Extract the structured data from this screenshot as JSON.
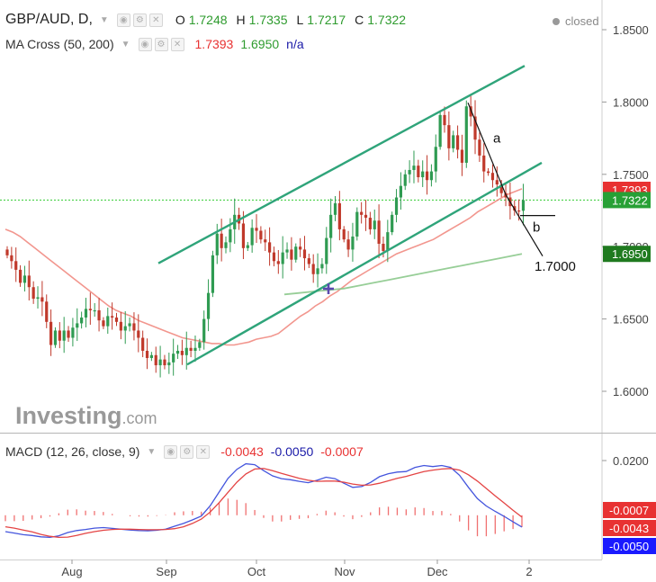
{
  "header": {
    "symbol": "GBP/AUD, D,",
    "status": "closed",
    "ohlc": [
      {
        "key": "O",
        "value": "1.7248"
      },
      {
        "key": "H",
        "value": "1.7335"
      },
      {
        "key": "L",
        "value": "1.7217"
      },
      {
        "key": "C",
        "value": "1.7322"
      }
    ]
  },
  "ma_legend": {
    "label": "MA Cross (50, 200)",
    "v1": "1.7393",
    "v2": "1.6950",
    "v3": "n/a"
  },
  "macd_legend": {
    "label": "MACD (12, 26, close, 9)",
    "v1": "-0.0043",
    "v2": "-0.0050",
    "v3": "-0.0007"
  },
  "watermark": {
    "brand": "Investing",
    "suffix": ".com"
  },
  "colors": {
    "up": "#2f9b52",
    "down": "#c0392b",
    "channel": "#2fa47a",
    "ma50": "#f0847a",
    "ma200": "#8cc98c",
    "macd": "#4455dd",
    "signal": "#e44444",
    "hist": "#f07070",
    "last_line": "#33cc33"
  },
  "chart_data": [
    {
      "type": "candlestick",
      "title": "GBP/AUD, D,",
      "x_ticks": [
        "Aug",
        "Sep",
        "Oct",
        "Nov",
        "Dec",
        "2"
      ],
      "y_ticks": [
        "1.8500",
        "1.8000",
        "1.7500",
        "1.7000",
        "1.6500",
        "1.6000"
      ],
      "ylim": [
        1.565,
        1.862
      ],
      "grid": false,
      "price_tags": [
        {
          "label": "1.7393",
          "value": 1.7393,
          "color": "#e83232"
        },
        {
          "label": "1.7322",
          "value": 1.7322,
          "color": "#27a035"
        },
        {
          "label": "1.6950",
          "value": 1.695,
          "color": "#1f7a1f"
        }
      ],
      "annotations": [
        {
          "text": "a",
          "x": 55,
          "y": 1.775
        },
        {
          "text": "b",
          "x": 62,
          "y": 1.7135
        },
        {
          "text": "1.7000",
          "x": 64,
          "y": 1.6865
        }
      ],
      "ohlc_last": {
        "open": 1.7248,
        "high": 1.7335,
        "low": 1.7217,
        "close": 1.7322
      },
      "closes": [
        1.694,
        1.69,
        1.684,
        1.675,
        1.68,
        1.672,
        1.664,
        1.665,
        1.662,
        1.648,
        1.632,
        1.642,
        1.635,
        1.642,
        1.637,
        1.644,
        1.647,
        1.651,
        1.657,
        1.656,
        1.656,
        1.649,
        1.645,
        1.652,
        1.651,
        1.648,
        1.642,
        1.645,
        1.647,
        1.642,
        1.637,
        1.628,
        1.623,
        1.625,
        1.618,
        1.622,
        1.618,
        1.62,
        1.626,
        1.628,
        1.625,
        1.63,
        1.628,
        1.63,
        1.634,
        1.65,
        1.668,
        1.694,
        1.709,
        1.699,
        1.703,
        1.712,
        1.722,
        1.716,
        1.699,
        1.701,
        1.713,
        1.711,
        1.705,
        1.703,
        1.696,
        1.69,
        1.688,
        1.696,
        1.698,
        1.691,
        1.7,
        1.698,
        1.692,
        1.688,
        1.681,
        1.685,
        1.688,
        1.706,
        1.722,
        1.73,
        1.712,
        1.705,
        1.698,
        1.707,
        1.724,
        1.722,
        1.72,
        1.712,
        1.718,
        1.702,
        1.697,
        1.71,
        1.722,
        1.734,
        1.742,
        1.75,
        1.753,
        1.756,
        1.748,
        1.752,
        1.746,
        1.752,
        1.769,
        1.791,
        1.784,
        1.768,
        1.777,
        1.767,
        1.758,
        1.797,
        1.79,
        1.774,
        1.763,
        1.752,
        1.751,
        1.746,
        1.743,
        1.737,
        1.734,
        1.728,
        1.725,
        1.7248,
        1.7322
      ],
      "series": [
        {
          "name": "MA 50",
          "values": [
            1.712,
            1.71,
            1.707,
            1.703,
            1.699,
            1.695,
            1.691,
            1.687,
            1.683,
            1.679,
            1.675,
            1.671,
            1.667,
            1.663,
            1.659,
            1.656,
            1.654,
            1.652,
            1.649,
            1.647,
            1.645,
            1.643,
            1.641,
            1.639,
            1.637,
            1.636,
            1.635,
            1.634,
            1.633,
            1.633,
            1.632,
            1.632,
            1.633,
            1.634,
            1.636,
            1.637,
            1.638,
            1.64,
            1.644,
            1.648,
            1.652,
            1.655,
            1.659,
            1.662,
            1.666,
            1.669,
            1.673,
            1.677,
            1.68,
            1.683,
            1.686,
            1.689,
            1.692,
            1.695,
            1.697,
            1.699,
            1.701,
            1.703,
            1.705,
            1.708,
            1.711,
            1.714,
            1.717,
            1.72,
            1.724,
            1.727,
            1.73,
            1.733,
            1.736,
            1.738,
            1.74
          ]
        },
        {
          "name": "MA 200",
          "values": [
            1.667,
            1.668,
            1.669,
            1.67,
            1.671,
            1.673,
            1.675,
            1.677,
            1.679,
            1.681,
            1.683,
            1.685,
            1.687,
            1.689,
            1.691,
            1.693,
            1.695
          ]
        }
      ]
    },
    {
      "type": "line",
      "title": "MACD (12, 26, close, 9)",
      "y_ticks": [
        "0.0200",
        "-0.0007",
        "-0.0043",
        "-0.0050"
      ],
      "ylim": [
        -0.0075,
        0.0225
      ],
      "series": [
        {
          "name": "MACD",
          "values": [
            -0.006,
            -0.0065,
            -0.0071,
            -0.0074,
            -0.0079,
            -0.0081,
            -0.0075,
            -0.0063,
            -0.0056,
            -0.0052,
            -0.0047,
            -0.0045,
            -0.0048,
            -0.0051,
            -0.0054,
            -0.0056,
            -0.0057,
            -0.0055,
            -0.0051,
            -0.004,
            -0.003,
            -0.0017,
            -0.0003,
            0.0035,
            0.0085,
            0.0135,
            0.0168,
            0.0188,
            0.0185,
            0.0163,
            0.0144,
            0.0134,
            0.013,
            0.0124,
            0.0119,
            0.0128,
            0.0139,
            0.0134,
            0.0117,
            0.0102,
            0.0105,
            0.012,
            0.0141,
            0.0152,
            0.0158,
            0.016,
            0.0175,
            0.0182,
            0.0178,
            0.0182,
            0.0175,
            0.0146,
            0.0102,
            0.0061,
            0.0034,
            0.0014,
            -0.0004,
            -0.0024,
            -0.0043
          ]
        },
        {
          "name": "Signal",
          "values": [
            -0.0042,
            -0.0047,
            -0.0054,
            -0.0061,
            -0.007,
            -0.0077,
            -0.0081,
            -0.008,
            -0.0074,
            -0.0066,
            -0.006,
            -0.0055,
            -0.0052,
            -0.0051,
            -0.0051,
            -0.0052,
            -0.0053,
            -0.0053,
            -0.0052,
            -0.0049,
            -0.0042,
            -0.003,
            -0.0014,
            0.0012,
            0.0046,
            0.0084,
            0.0121,
            0.0151,
            0.0169,
            0.0171,
            0.0163,
            0.0153,
            0.0144,
            0.0135,
            0.0128,
            0.0124,
            0.0125,
            0.0125,
            0.0121,
            0.0114,
            0.011,
            0.0111,
            0.0117,
            0.0126,
            0.0135,
            0.0142,
            0.0151,
            0.016,
            0.0165,
            0.0169,
            0.0171,
            0.0165,
            0.0148,
            0.0125,
            0.0098,
            0.0071,
            0.0045,
            0.0018,
            -0.0007
          ]
        }
      ]
    }
  ]
}
